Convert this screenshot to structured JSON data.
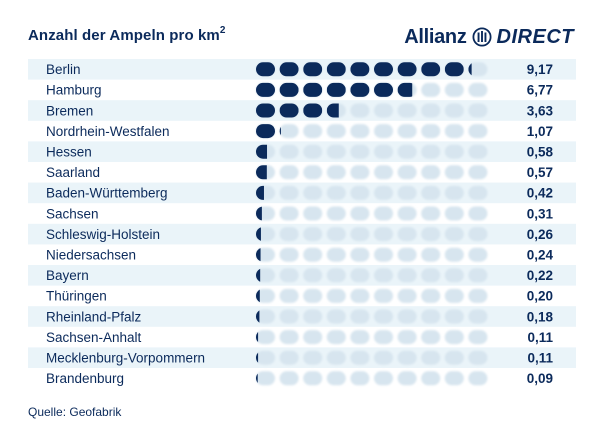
{
  "title": "Anzahl der Ampeln pro km",
  "title_superscript": "2",
  "logo": {
    "brand": "Allianz",
    "mark_icon": "allianz-eagle-icon",
    "product": "DIRECT"
  },
  "source": "Quelle: Geofabrik",
  "colors": {
    "dot": "#0b2a5b",
    "dot_faded": "#d7e5ef",
    "row_band": "#eaf4f9",
    "text": "#0b2a5b"
  },
  "chart_data": {
    "type": "bar",
    "style": "dot-pictogram",
    "unit_per_dot": 1,
    "max_dots": 10,
    "xlim": [
      0,
      10
    ],
    "categories": [
      "Berlin",
      "Hamburg",
      "Bremen",
      "Nordrhein-Westfalen",
      "Hessen",
      "Saarland",
      "Baden-Württemberg",
      "Sachsen",
      "Schleswig-Holstein",
      "Niedersachsen",
      "Bayern",
      "Thüringen",
      "Rheinland-Pfalz",
      "Sachsen-Anhalt",
      "Mecklenburg-Vorpommern",
      "Brandenburg"
    ],
    "values": [
      9.17,
      6.77,
      3.63,
      1.07,
      0.58,
      0.57,
      0.42,
      0.31,
      0.26,
      0.24,
      0.22,
      0.2,
      0.18,
      0.11,
      0.11,
      0.09
    ],
    "value_labels": [
      "9,17",
      "6,77",
      "3,63",
      "1,07",
      "0,58",
      "0,57",
      "0,42",
      "0,31",
      "0,26",
      "0,24",
      "0,22",
      "0,20",
      "0,18",
      "0,11",
      "0,11",
      "0,09"
    ],
    "title": "Anzahl der Ampeln pro km²",
    "xlabel": "",
    "ylabel": ""
  }
}
